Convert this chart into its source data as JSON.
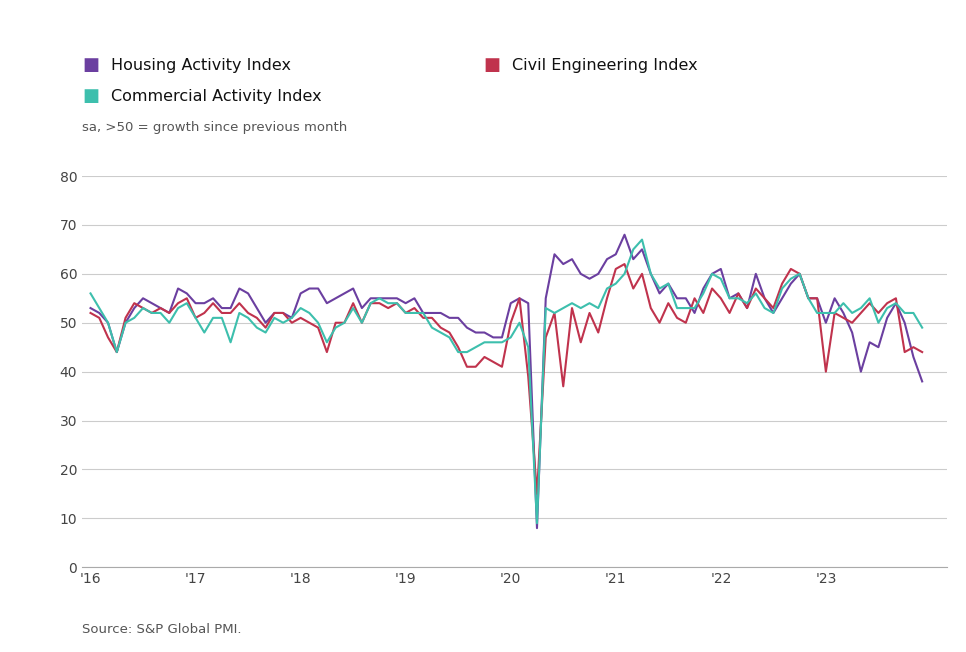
{
  "subtitle": "sa, >50 = growth since previous month",
  "source": "Source: S&P Global PMI.",
  "legend": [
    {
      "label": "Housing Activity Index",
      "color": "#6B3FA0"
    },
    {
      "label": "Civil Engineering Index",
      "color": "#C0334D"
    },
    {
      "label": "Commercial Activity Index",
      "color": "#3DBFAD"
    }
  ],
  "ylim": [
    0,
    80
  ],
  "yticks": [
    0,
    10,
    20,
    30,
    40,
    50,
    60,
    70,
    80
  ],
  "xtick_labels": [
    "'16",
    "'17",
    "'18",
    "'19",
    "'20",
    "'21",
    "'22",
    "'23"
  ],
  "housing": [
    53,
    52,
    50,
    44,
    50,
    53,
    55,
    54,
    53,
    52,
    57,
    56,
    54,
    54,
    55,
    53,
    53,
    57,
    56,
    53,
    50,
    52,
    52,
    51,
    56,
    57,
    57,
    54,
    55,
    56,
    57,
    53,
    55,
    55,
    55,
    55,
    54,
    55,
    52,
    52,
    52,
    51,
    51,
    49,
    48,
    48,
    47,
    47,
    54,
    55,
    54,
    8,
    55,
    64,
    62,
    63,
    60,
    59,
    60,
    63,
    64,
    68,
    63,
    65,
    60,
    56,
    58,
    55,
    55,
    52,
    57,
    60,
    61,
    55,
    56,
    53,
    60,
    55,
    52,
    55,
    58,
    60,
    55,
    55,
    50,
    55,
    52,
    48,
    40,
    46,
    45,
    51,
    54,
    50,
    43,
    38
  ],
  "civil": [
    52,
    51,
    47,
    44,
    51,
    54,
    53,
    52,
    53,
    52,
    54,
    55,
    51,
    52,
    54,
    52,
    52,
    54,
    52,
    51,
    49,
    52,
    52,
    50,
    51,
    50,
    49,
    44,
    50,
    50,
    54,
    50,
    54,
    54,
    53,
    54,
    52,
    53,
    51,
    51,
    49,
    48,
    45,
    41,
    41,
    43,
    42,
    41,
    50,
    55,
    39,
    15,
    47,
    52,
    37,
    53,
    46,
    52,
    48,
    55,
    61,
    62,
    57,
    60,
    53,
    50,
    54,
    51,
    50,
    55,
    52,
    57,
    55,
    52,
    56,
    53,
    57,
    55,
    53,
    58,
    61,
    60,
    55,
    55,
    40,
    52,
    51,
    50,
    52,
    54,
    52,
    54,
    55,
    44,
    45,
    44
  ],
  "commercial": [
    56,
    53,
    50,
    44,
    50,
    51,
    53,
    52,
    52,
    50,
    53,
    54,
    51,
    48,
    51,
    51,
    46,
    52,
    51,
    49,
    48,
    51,
    50,
    51,
    53,
    52,
    50,
    46,
    49,
    50,
    53,
    50,
    54,
    55,
    54,
    54,
    52,
    52,
    52,
    49,
    48,
    47,
    44,
    44,
    45,
    46,
    46,
    46,
    47,
    50,
    45,
    9,
    53,
    52,
    53,
    54,
    53,
    54,
    53,
    57,
    58,
    60,
    65,
    67,
    60,
    57,
    58,
    53,
    53,
    53,
    56,
    60,
    59,
    55,
    55,
    54,
    56,
    53,
    52,
    57,
    59,
    60,
    55,
    52,
    52,
    52,
    54,
    52,
    53,
    55,
    50,
    53,
    54,
    52,
    52,
    49
  ]
}
